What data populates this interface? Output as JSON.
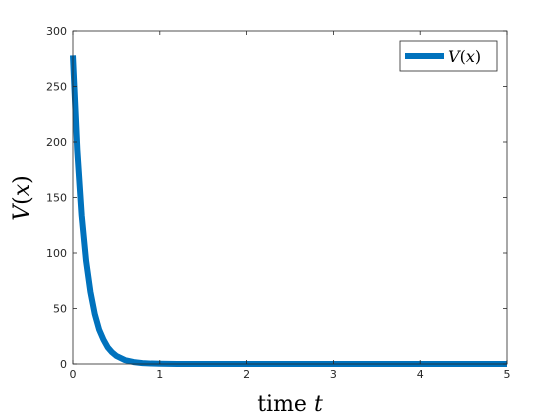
{
  "chart_data": {
    "type": "line",
    "title": "",
    "xlabel_prefix": "time ",
    "xlabel_var": "t",
    "ylabel_v": "V",
    "ylabel_open": "(",
    "ylabel_x": "x",
    "ylabel_close": ")",
    "xlim": [
      0,
      5
    ],
    "ylim": [
      0,
      300
    ],
    "xticks": [
      0,
      1,
      2,
      3,
      4,
      5
    ],
    "yticks": [
      0,
      50,
      100,
      150,
      200,
      250,
      300
    ],
    "grid": false,
    "legend_position": "top-right",
    "series": [
      {
        "name_v": "V",
        "name_open": "(",
        "name_x": "x",
        "name_close": ")",
        "color": "#0072BD",
        "x": [
          0,
          0.05,
          0.1,
          0.15,
          0.2,
          0.25,
          0.3,
          0.35,
          0.4,
          0.45,
          0.5,
          0.6,
          0.7,
          0.8,
          0.9,
          1.0,
          1.2,
          1.4,
          1.6,
          2.0,
          2.5,
          3.0,
          3.5,
          4.0,
          4.5,
          5.0
        ],
        "y": [
          278,
          193,
          134,
          93,
          65,
          45,
          31,
          22,
          15,
          10.5,
          7.3,
          3.5,
          1.7,
          0.8,
          0.4,
          0.2,
          0.05,
          0.01,
          0,
          0,
          0,
          0,
          0,
          0,
          0,
          0
        ]
      }
    ]
  }
}
